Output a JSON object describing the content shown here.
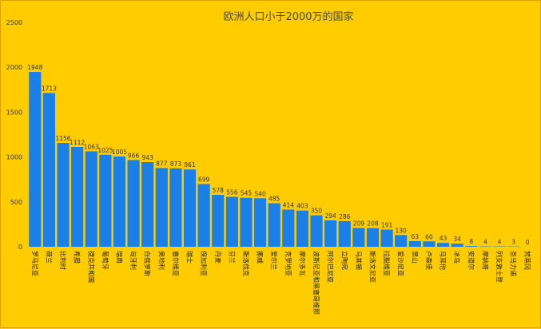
{
  "chart_data": {
    "type": "bar",
    "title": "欧洲人口小于2000万的国家",
    "xlabel": "",
    "ylabel": "",
    "ylim": [
      0,
      2500
    ],
    "yticks": [
      0,
      500,
      1000,
      1500,
      2000,
      2500
    ],
    "grid": false,
    "legend": "none",
    "bar_color": "#1a7fe6",
    "background": "#ffcc00",
    "categories": [
      "罗马尼亚",
      "荷兰",
      "比利时",
      "希腊",
      "捷克共和国",
      "葡萄牙",
      "瑞典",
      "匈牙利",
      "白俄罗斯",
      "奥地利",
      "塞尔维亚",
      "瑞士",
      "保加利亚",
      "丹麦",
      "芬兰",
      "斯洛伐克",
      "挪威",
      "爱尔兰",
      "克罗地亚",
      "摩尔多瓦",
      "波斯尼亚和黑塞哥维那",
      "阿尔巴尼亚",
      "立陶宛",
      "马其顿",
      "斯洛文尼亚",
      "拉脱维亚",
      "爱沙尼亚",
      "黑山",
      "卢森堡",
      "马耳他",
      "冰岛",
      "安道尔",
      "摩纳哥",
      "列支敦士登",
      "圣马力诺",
      "梵蒂冈"
    ],
    "values": [
      1948,
      1713,
      1156,
      1112,
      1063,
      1025,
      1005,
      966,
      943,
      877,
      873,
      861,
      699,
      578,
      556,
      545,
      540,
      485,
      414,
      403,
      350,
      294,
      286,
      209,
      208,
      191,
      130,
      63,
      60,
      43,
      34,
      8,
      4,
      4,
      3,
      0
    ]
  }
}
